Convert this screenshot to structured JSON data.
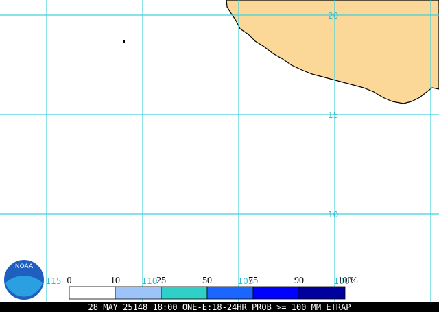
{
  "logo": "NOAA",
  "latitudes": [
    20,
    15,
    10
  ],
  "longitudes": [
    115,
    110,
    105,
    100
  ],
  "legend": {
    "ticks": [
      0,
      10,
      25,
      50,
      75,
      90,
      100
    ],
    "unit": "%",
    "colors": [
      "#ffffff",
      "#9cc4f8",
      "#30d0c8",
      "#1a66ff",
      "#0000ff",
      "#00009c"
    ]
  },
  "footer": "28 MAY 25148 18:00 ONE-E:18-24HR PROB >= 100 MM ETRAP"
}
